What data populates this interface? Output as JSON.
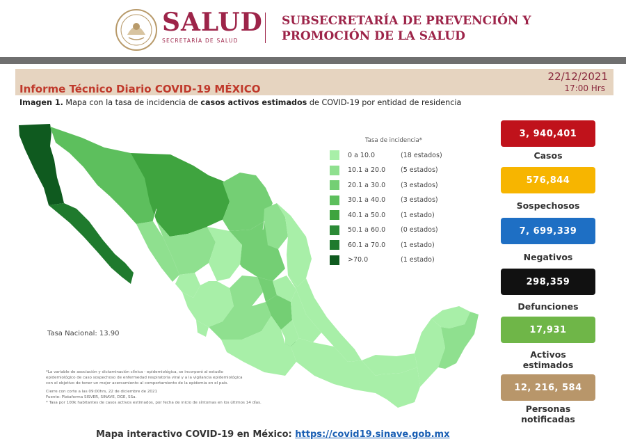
{
  "header": {
    "brand_name": "SALUD",
    "brand_subtitle": "SECRETARÍA DE SALUD",
    "subsecretaria_line1": "SUBSECRETARÍA DE PREVENCIÓN Y",
    "subsecretaria_line2": "PROMOCIÓN DE LA SALUD",
    "brand_color": "#9d2449"
  },
  "report": {
    "title": "Informe Técnico Diario COVID-19 MÉXICO",
    "date": "22/12/2021",
    "time": "17:00 Hrs",
    "caption_prefix": "Imagen 1.",
    "caption_part1": " Mapa con la tasa de incidencia de ",
    "caption_bold": "casos activos estimados",
    "caption_part2": " de COVID-19 por entidad de residencia"
  },
  "map": {
    "legend_title": "Tasa de incidencia*",
    "legend": [
      {
        "range": "0 a 10.0",
        "count": "(18 estados)",
        "color": "#a8efa8"
      },
      {
        "range": "10.1 a 20.0",
        "count": "(5 estados)",
        "color": "#8fe08f"
      },
      {
        "range": "20.1 a 30.0",
        "count": "(3 estados)",
        "color": "#74cf74"
      },
      {
        "range": "30.1 a 40.0",
        "count": "(3 estados)",
        "color": "#5dbf5d"
      },
      {
        "range": "40.1 a 50.0",
        "count": "(1 estado)",
        "color": "#3fa43f"
      },
      {
        "range": "50.1 a 60.0",
        "count": "(0 estados)",
        "color": "#2b8a36"
      },
      {
        "range": "60.1 a 70.0",
        "count": "(1 estado)",
        "color": "#1f7a2d"
      },
      {
        "range": ">70.0",
        "count": "(1 estado)",
        "color": "#0f5a1f"
      }
    ],
    "tasa_nacional": "Tasa Nacional: 13.90",
    "footnotes": [
      "*La variable de asociación y dictaminación clínica - epidemiológica, se incorporó al estudio",
      "epidemiológico de caso sospechoso de enfermedad respiratoria viral y a la vigilancia epidemiológica",
      "con el objetivo de tener un mejor acercamiento al comportamiento de la epidemia en el país.",
      "Cierre con corte a las 09:00hrs, 22 de diciembre de 2021",
      "Fuente: Plataforma SISVER, SINAVE, DGE, SSa.",
      "* Tasa por 100k habitantes de casos activos estimados, por fecha de inicio de síntomas en los últimos 14 días."
    ]
  },
  "stats": [
    {
      "value": "3, 940,401",
      "label": "Casos",
      "color": "#c0121b"
    },
    {
      "value": "576,844",
      "label": "Sospechosos",
      "color": "#f7b500"
    },
    {
      "value": "7, 699,339",
      "label": "Negativos",
      "color": "#1e6fc4"
    },
    {
      "value": "298,359",
      "label": "Defunciones",
      "color": "#111111"
    },
    {
      "value": "17,931",
      "label_line1": "Activos",
      "label_line2": "estimados",
      "color": "#6fb648"
    },
    {
      "value": "12, 216, 584",
      "label_line1": "Personas",
      "label_line2": "notificadas",
      "color": "#b8966a"
    }
  ],
  "footer": {
    "text": "Mapa interactivo COVID-19 en México: ",
    "link": "https://covid19.sinave.gob.mx"
  }
}
